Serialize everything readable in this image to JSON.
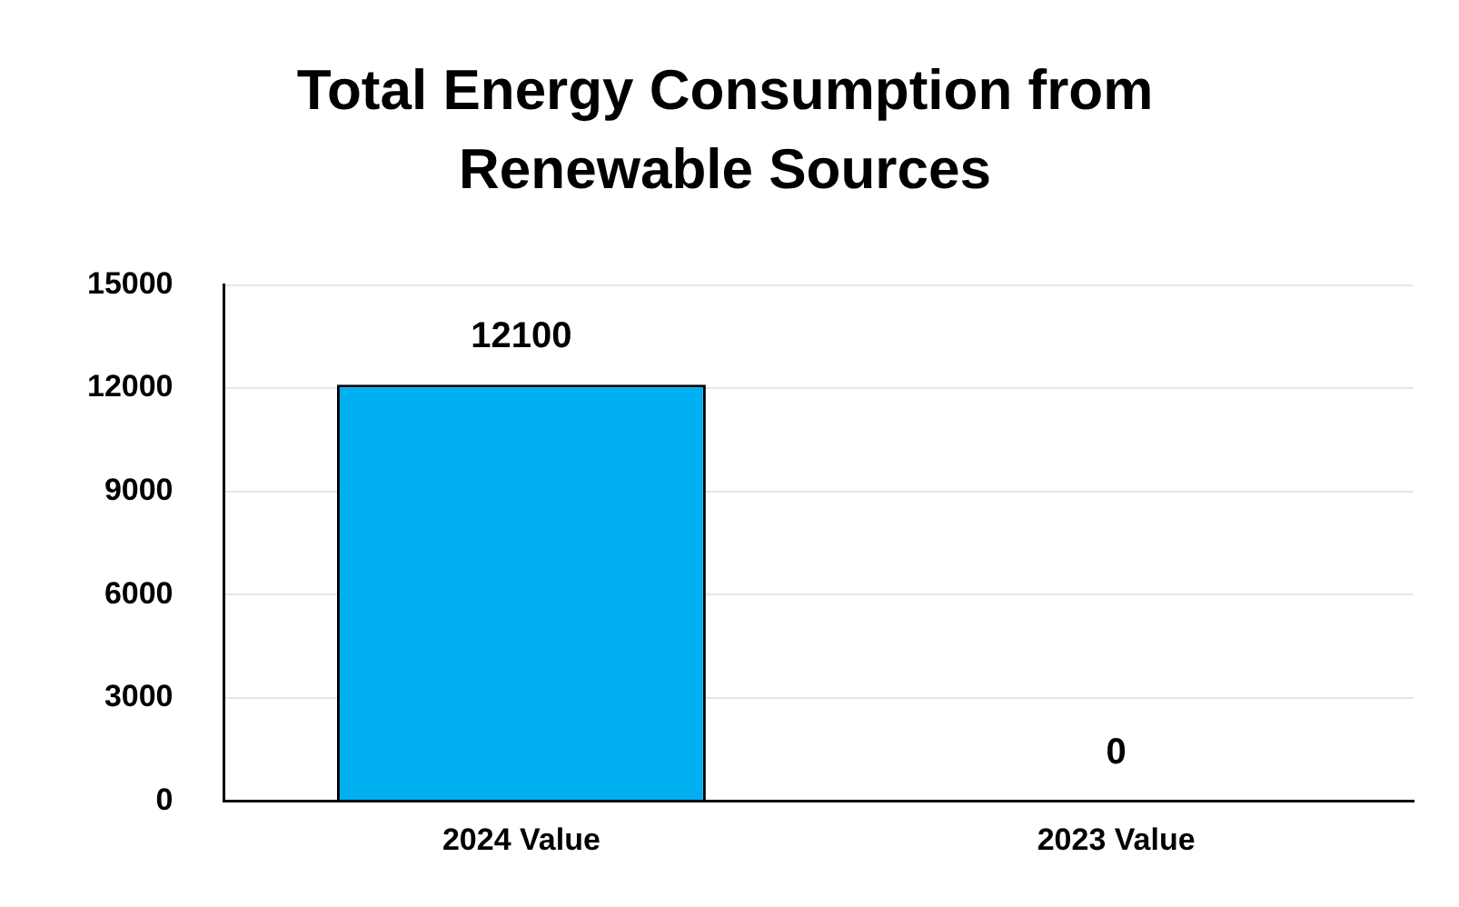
{
  "chart_data": {
    "type": "bar",
    "title": "Total Energy Consumption from Renewable Sources",
    "categories": [
      "2024 Value",
      "2023 Value"
    ],
    "values": [
      12100,
      0
    ],
    "color": "#00b0f0",
    "ylim": [
      0,
      15000
    ],
    "yticks": [
      0,
      3000,
      6000,
      9000,
      12000,
      15000
    ],
    "grid": "y",
    "data_labels": true,
    "legend": false
  }
}
